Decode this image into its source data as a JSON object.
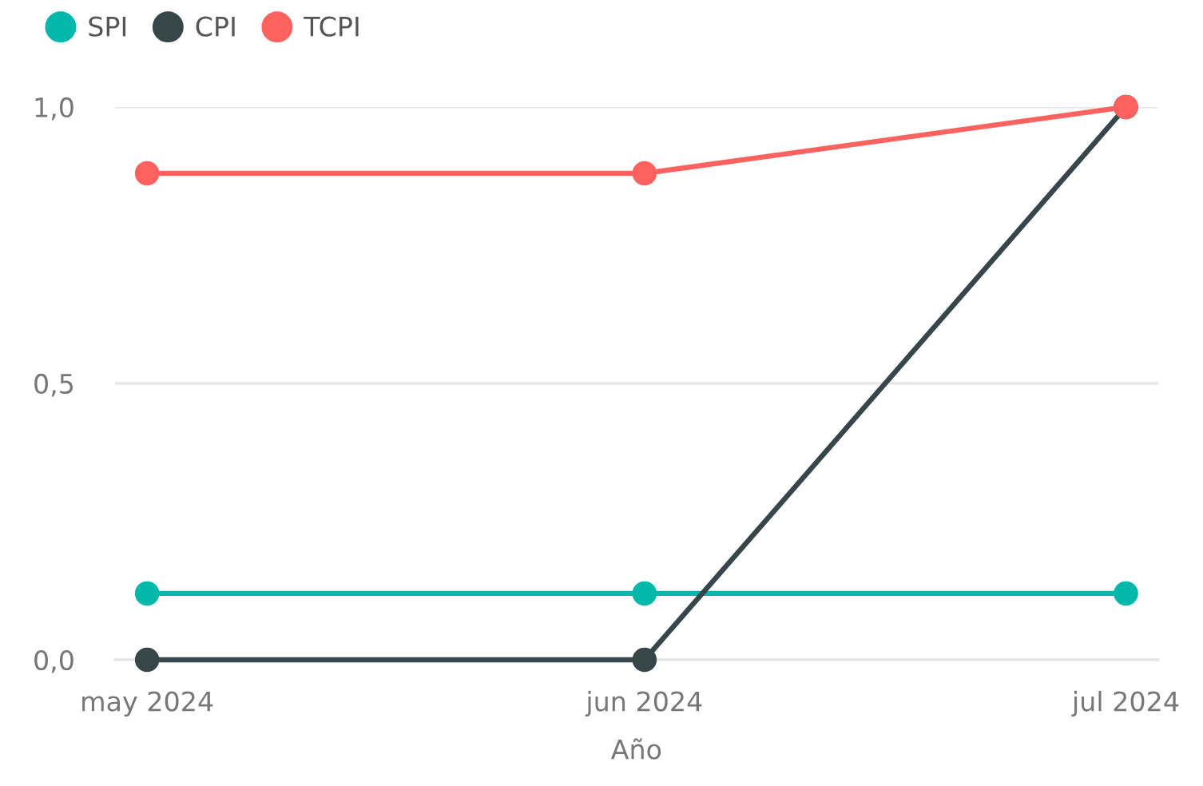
{
  "chart_data": {
    "type": "line",
    "xlabel": "Año",
    "x": [
      "2024-05",
      "2024-06",
      "2024-07"
    ],
    "series": [
      {
        "name": "SPI",
        "color": "#01b8aa",
        "values": [
          0.12,
          0.12,
          0.12
        ]
      },
      {
        "name": "CPI",
        "color": "#374649",
        "values": [
          0,
          0,
          1.0
        ]
      },
      {
        "name": "TCPI",
        "color": "#fd625e",
        "values": [
          0.88,
          0.88,
          1.0
        ]
      }
    ],
    "xlim": [
      "2024-04-29",
      "2024-07-03"
    ],
    "xticks": [
      {
        "value": "2024-05",
        "label": "may 2024"
      },
      {
        "value": "2024-06",
        "label": "jun 2024"
      },
      {
        "value": "2024-07",
        "label": "jul 2024"
      }
    ],
    "ylim": [
      0,
      1
    ],
    "yticks": [
      {
        "value": 0,
        "label": "0,0"
      },
      {
        "value": 0.5,
        "label": "0,5"
      },
      {
        "value": 1,
        "label": "1,0"
      }
    ],
    "grid": "y",
    "legend": "top left",
    "marker": "circle",
    "line_style": "solid"
  }
}
